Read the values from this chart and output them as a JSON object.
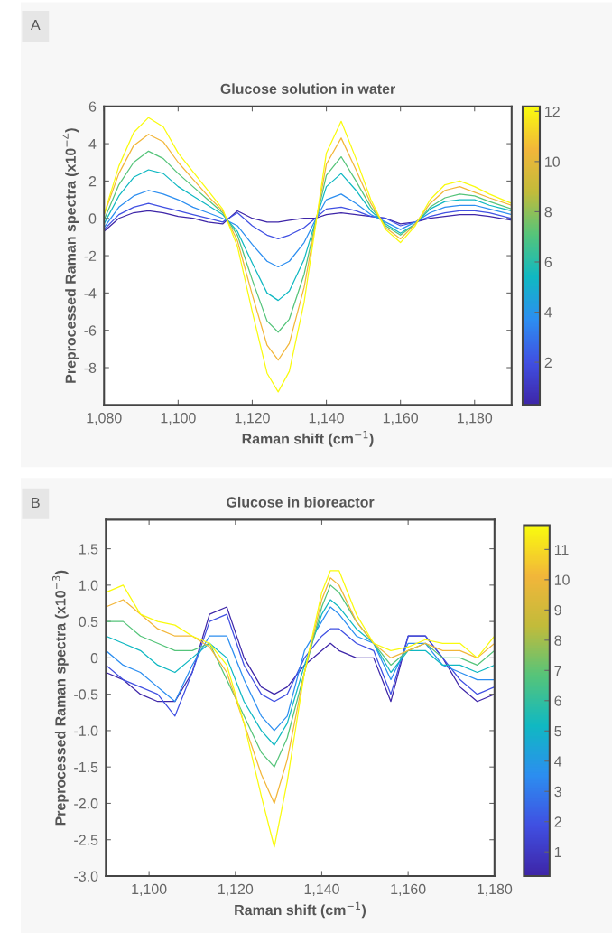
{
  "chart_data": [
    {
      "type": "line",
      "title": "Glucose solution in water",
      "xlabel": "Raman shift (cm$^{−1}$)",
      "ylabel": "Preprocessed Raman spectra (x10$^{−4}$)",
      "annotations": [
        "A"
      ],
      "x": [
        1080,
        1084,
        1088,
        1092,
        1096,
        1100,
        1104,
        1108,
        1112,
        1116,
        1120,
        1124,
        1127,
        1130,
        1134,
        1137,
        1140,
        1144,
        1148,
        1152,
        1156,
        1160,
        1164,
        1168,
        1172,
        1176,
        1180,
        1184,
        1190
      ],
      "xlim": [
        1080,
        1190
      ],
      "xticks": [
        {
          "value": 1080,
          "label": "1,080"
        },
        {
          "value": 1100,
          "label": "1,100"
        },
        {
          "value": 1120,
          "label": "1,120"
        },
        {
          "value": 1140,
          "label": "1,140"
        },
        {
          "value": 1160,
          "label": "1,160"
        },
        {
          "value": 1180,
          "label": "1,180"
        }
      ],
      "ylim": [
        -10,
        6
      ],
      "yticks": [
        -8,
        -6,
        -4,
        -2,
        0,
        2,
        4,
        6
      ],
      "clim": [
        0.3,
        12.2
      ],
      "cticks": [
        2,
        4,
        6,
        8,
        10,
        12
      ],
      "grid": false,
      "legend": false,
      "series": [
        {
          "color": "#3e26a8",
          "values": [
            -0.7,
            0.0,
            0.3,
            0.4,
            0.3,
            0.1,
            0.0,
            -0.2,
            -0.3,
            0.4,
            0.0,
            -0.2,
            -0.2,
            -0.1,
            0.0,
            0.0,
            0.2,
            0.3,
            0.2,
            0.1,
            0.0,
            -0.3,
            -0.2,
            0.0,
            0.1,
            0.2,
            0.2,
            0.1,
            -0.1
          ]
        },
        {
          "color": "#4050e2",
          "values": [
            -0.6,
            0.2,
            0.6,
            0.8,
            0.6,
            0.4,
            0.2,
            0.0,
            -0.2,
            0.3,
            -0.4,
            -0.9,
            -1.1,
            -0.9,
            -0.5,
            0.0,
            0.5,
            0.6,
            0.4,
            0.1,
            0.0,
            -0.4,
            -0.2,
            0.1,
            0.3,
            0.4,
            0.4,
            0.3,
            0.0
          ]
        },
        {
          "color": "#2c8ef0",
          "values": [
            -0.5,
            0.6,
            1.2,
            1.5,
            1.3,
            1.0,
            0.6,
            0.3,
            0.0,
            -0.4,
            -1.4,
            -2.3,
            -2.6,
            -2.3,
            -1.3,
            -0.1,
            1.0,
            1.3,
            0.8,
            0.2,
            -0.2,
            -0.6,
            -0.2,
            0.3,
            0.6,
            0.7,
            0.7,
            0.5,
            0.2
          ]
        },
        {
          "color": "#10b8c2",
          "values": [
            -0.3,
            1.2,
            2.2,
            2.6,
            2.4,
            1.7,
            1.2,
            0.7,
            0.2,
            -0.7,
            -2.4,
            -4.0,
            -4.4,
            -3.9,
            -2.2,
            -0.2,
            1.7,
            2.4,
            1.5,
            0.4,
            -0.3,
            -0.8,
            -0.3,
            0.5,
            0.9,
            1.0,
            1.0,
            0.7,
            0.4
          ]
        },
        {
          "color": "#55c47a",
          "values": [
            -0.1,
            1.8,
            3.0,
            3.6,
            3.2,
            2.4,
            1.7,
            1.0,
            0.3,
            -0.9,
            -3.3,
            -5.5,
            -6.1,
            -5.4,
            -3.0,
            -0.3,
            2.3,
            3.3,
            2.0,
            0.6,
            -0.4,
            -0.9,
            -0.3,
            0.6,
            1.1,
            1.3,
            1.2,
            0.9,
            0.5
          ]
        },
        {
          "color": "#f2b63a",
          "values": [
            0.2,
            2.4,
            3.9,
            4.5,
            4.1,
            3.0,
            2.1,
            1.2,
            0.4,
            -1.2,
            -4.1,
            -6.8,
            -7.6,
            -6.7,
            -3.7,
            -0.4,
            2.9,
            4.3,
            2.6,
            0.8,
            -0.5,
            -1.1,
            -0.3,
            0.8,
            1.5,
            1.7,
            1.4,
            1.1,
            0.7
          ]
        },
        {
          "color": "#f9fb0e",
          "values": [
            0.2,
            2.8,
            4.6,
            5.4,
            4.9,
            3.5,
            2.5,
            1.5,
            0.5,
            -1.5,
            -5.0,
            -8.3,
            -9.3,
            -8.2,
            -4.5,
            -0.5,
            3.5,
            5.2,
            3.2,
            1.0,
            -0.6,
            -1.3,
            -0.4,
            1.0,
            1.8,
            2.0,
            1.7,
            1.3,
            0.8
          ]
        }
      ]
    },
    {
      "type": "line",
      "title": "Glucose in bioreactor",
      "xlabel": "Raman shift (cm$^{−1}$)",
      "ylabel": "Preprocessed Raman spectra (x10$^{−3}$)",
      "annotations": [
        "B"
      ],
      "x": [
        1090,
        1094,
        1098,
        1102,
        1106,
        1110,
        1114,
        1118,
        1122,
        1126,
        1129,
        1132,
        1136,
        1140,
        1142,
        1144,
        1148,
        1152,
        1156,
        1160,
        1164,
        1168,
        1172,
        1176,
        1180
      ],
      "xlim": [
        1090,
        1180
      ],
      "xticks": [
        {
          "value": 1100,
          "label": "1,100"
        },
        {
          "value": 1120,
          "label": "1,120"
        },
        {
          "value": 1140,
          "label": "1,140"
        },
        {
          "value": 1160,
          "label": "1,160"
        },
        {
          "value": 1180,
          "label": "1,180"
        }
      ],
      "ylim": [
        -3.0,
        1.9
      ],
      "yticks": [
        {
          "value": -3,
          "label": "-3.0"
        },
        -2.5,
        {
          "value": -2,
          "label": "-2.0"
        },
        -1.5,
        {
          "value": -1,
          "label": "-1.0"
        },
        -0.5,
        0,
        0.5,
        {
          "value": 1,
          "label": "1.0"
        },
        1.5
      ],
      "clim": [
        0.2,
        11.8
      ],
      "cticks": [
        1,
        2,
        3,
        4,
        5,
        6,
        7,
        8,
        9,
        10,
        11
      ],
      "grid": false,
      "legend": false,
      "series": [
        {
          "color": "#3e26a8",
          "values": [
            -0.2,
            -0.3,
            -0.5,
            -0.6,
            -0.6,
            -0.2,
            0.6,
            0.7,
            0.0,
            -0.4,
            -0.5,
            -0.4,
            -0.1,
            0.1,
            0.2,
            0.1,
            0.0,
            0.0,
            -0.6,
            0.3,
            0.3,
            0.0,
            -0.4,
            -0.6,
            -0.5
          ]
        },
        {
          "color": "#4050e2",
          "values": [
            -0.1,
            -0.3,
            -0.4,
            -0.5,
            -0.8,
            -0.2,
            0.5,
            0.6,
            -0.1,
            -0.5,
            -0.6,
            -0.5,
            0.0,
            0.3,
            0.4,
            0.4,
            0.2,
            0.1,
            -0.5,
            0.3,
            0.3,
            0.0,
            -0.3,
            -0.5,
            -0.4
          ]
        },
        {
          "color": "#2c8ef0",
          "values": [
            0.1,
            -0.1,
            -0.2,
            -0.4,
            -0.6,
            -0.1,
            0.3,
            0.3,
            -0.3,
            -0.8,
            -1.0,
            -0.8,
            0.1,
            0.5,
            0.7,
            0.6,
            0.3,
            0.2,
            -0.3,
            0.2,
            0.2,
            -0.1,
            -0.2,
            -0.3,
            -0.3
          ]
        },
        {
          "color": "#10b8c2",
          "values": [
            0.3,
            0.2,
            0.1,
            -0.1,
            -0.2,
            0.0,
            0.2,
            0.0,
            -0.6,
            -1.0,
            -1.2,
            -0.9,
            -0.1,
            0.6,
            0.8,
            0.7,
            0.4,
            0.2,
            -0.2,
            0.1,
            0.1,
            -0.1,
            -0.1,
            -0.2,
            -0.1
          ]
        },
        {
          "color": "#55c47a",
          "values": [
            0.5,
            0.5,
            0.3,
            0.2,
            0.1,
            0.1,
            0.2,
            -0.3,
            -0.8,
            -1.3,
            -1.5,
            -1.1,
            -0.2,
            0.7,
            1.0,
            0.9,
            0.5,
            0.2,
            -0.1,
            0.1,
            0.2,
            0.0,
            0.0,
            -0.1,
            0.1
          ]
        },
        {
          "color": "#f2b63a",
          "values": [
            0.7,
            0.8,
            0.6,
            0.4,
            0.3,
            0.3,
            0.15,
            -0.2,
            -0.9,
            -1.6,
            -2.0,
            -1.4,
            -0.2,
            0.8,
            1.1,
            1.0,
            0.5,
            0.2,
            0.0,
            0.1,
            0.2,
            0.1,
            0.1,
            0.0,
            0.2
          ]
        },
        {
          "color": "#f9fb0e",
          "values": [
            0.9,
            1.0,
            0.6,
            0.5,
            0.45,
            0.3,
            0.2,
            -0.1,
            -0.9,
            -1.9,
            -2.6,
            -1.7,
            -0.2,
            0.9,
            1.2,
            1.2,
            0.6,
            0.2,
            0.1,
            0.15,
            0.25,
            0.2,
            0.2,
            0.0,
            0.3
          ]
        }
      ]
    }
  ]
}
